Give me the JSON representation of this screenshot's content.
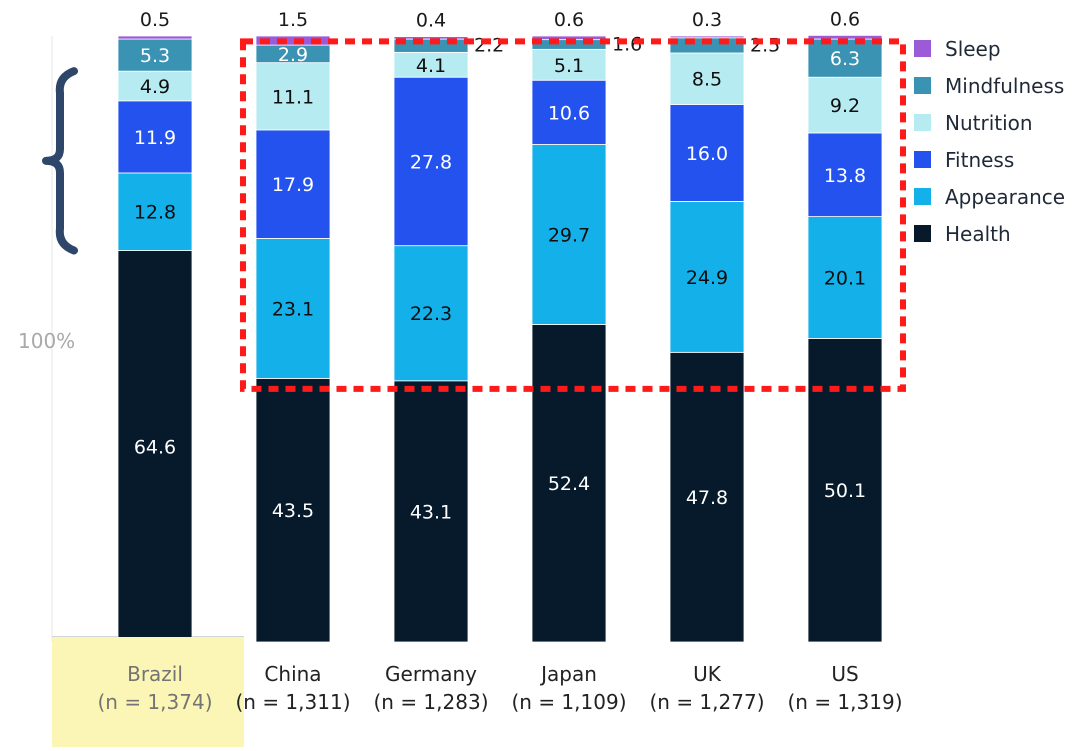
{
  "chart_data": {
    "type": "bar",
    "stacked": true,
    "categories": [
      "Brazil\n(n = 1,374)",
      "China\n(n = 1,311)",
      "Germany\n(n = 1,283)",
      "Japan\n(n = 1,109)",
      "UK\n(n = 1,277)",
      "US\n(n = 1,319)"
    ],
    "series": [
      {
        "name": "Health",
        "values": [
          64.6,
          43.5,
          43.1,
          52.4,
          47.8,
          50.1
        ],
        "color": "#061a2b"
      },
      {
        "name": "Appearance",
        "values": [
          12.8,
          23.1,
          22.3,
          29.7,
          24.9,
          20.1
        ],
        "color": "#14b0ea"
      },
      {
        "name": "Fitness",
        "values": [
          11.9,
          17.9,
          27.8,
          10.6,
          16.0,
          13.8
        ],
        "color": "#2452ef"
      },
      {
        "name": "Nutrition",
        "values": [
          4.9,
          11.1,
          4.1,
          5.1,
          8.5,
          9.2
        ],
        "color": "#b7ebf2"
      },
      {
        "name": "Mindfulness",
        "values": [
          5.3,
          2.9,
          2.2,
          1.6,
          2.5,
          6.3
        ],
        "color": "#3a93b3"
      },
      {
        "name": "Sleep",
        "values": [
          0.5,
          1.5,
          0.4,
          0.6,
          0.3,
          0.6
        ],
        "color": "#9b5ad7"
      }
    ],
    "data_labels": [
      [
        "64.6",
        "12.8",
        "11.9",
        "4.9",
        "5.3",
        "0.5"
      ],
      [
        "43.5",
        "23.1",
        "17.9",
        "11.1",
        "2.9",
        "1.5"
      ],
      [
        "43.1",
        "22.3",
        "27.8",
        "4.1",
        "2.2",
        "0.4"
      ],
      [
        "52.4",
        "29.7",
        "10.6",
        "5.1",
        "1.6",
        "0.6"
      ],
      [
        "47.8",
        "24.9",
        "16.0",
        "8.5",
        "2.5",
        "0.3"
      ],
      [
        "50.1",
        "20.1",
        "13.8",
        "9.2",
        "6.3",
        "0.6"
      ]
    ],
    "legend": {
      "position": "right",
      "items": [
        "Sleep",
        "Mindfulness",
        "Nutrition",
        "Fitness",
        "Appearance",
        "Health"
      ]
    },
    "annotations": {
      "y_total_label": "100%",
      "highlighted_category": "Brazil\n(n = 1,374)",
      "dashed_region_categories": [
        "China\n(n = 1,311)",
        "Germany\n(n = 1,283)",
        "Japan\n(n = 1,109)",
        "UK\n(n = 1,277)",
        "US\n(n = 1,319)"
      ],
      "dashed_region_series": [
        "Appearance",
        "Fitness",
        "Nutrition"
      ],
      "brace_target": "Brazil\n(n = 1,374)"
    },
    "ylim": [
      0,
      100
    ],
    "title": "",
    "xlabel": "",
    "ylabel": ""
  },
  "colors": {
    "health": "#061a2b",
    "appearance": "#14b0ea",
    "fitness": "#2452ef",
    "nutrition": "#b7ebf2",
    "mindfulness": "#3a93b3",
    "sleep": "#9b5ad7",
    "dashed_box": "#ff1a1a",
    "highlight_fill": "#fbf6b6",
    "brace": "#2e466a",
    "axis_gray": "#a9a9a9"
  }
}
